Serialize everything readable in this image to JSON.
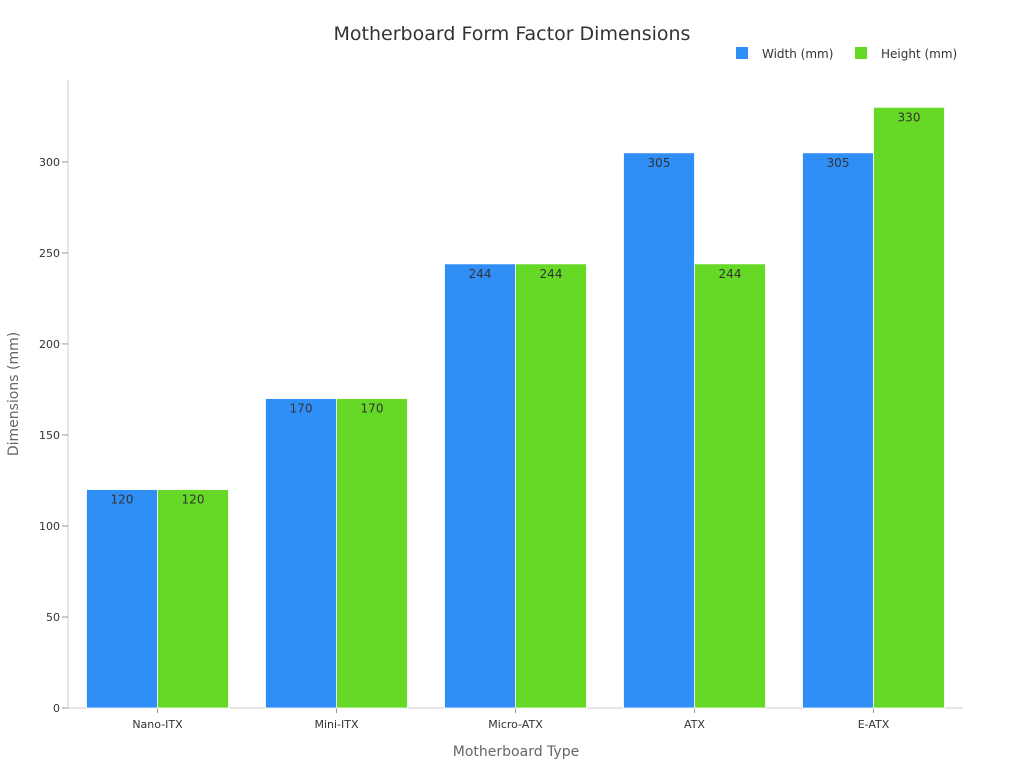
{
  "chart_data": {
    "type": "bar",
    "title": "Motherboard Form Factor Dimensions",
    "xlabel": "Motherboard Type",
    "ylabel": "Dimensions (mm)",
    "categories": [
      "Nano-ITX",
      "Mini-ITX",
      "Micro-ATX",
      "ATX",
      "E-ATX"
    ],
    "series": [
      {
        "name": "Width (mm)",
        "values": [
          120,
          170,
          244,
          305,
          305
        ],
        "color": "#2f8ff7"
      },
      {
        "name": "Height (mm)",
        "values": [
          120,
          170,
          244,
          244,
          330
        ],
        "color": "#66d926"
      }
    ],
    "ylim": [
      0,
      345
    ],
    "yticks": [
      0,
      50,
      100,
      150,
      200,
      250,
      300
    ],
    "grid": false,
    "legend_position": "top-right"
  }
}
